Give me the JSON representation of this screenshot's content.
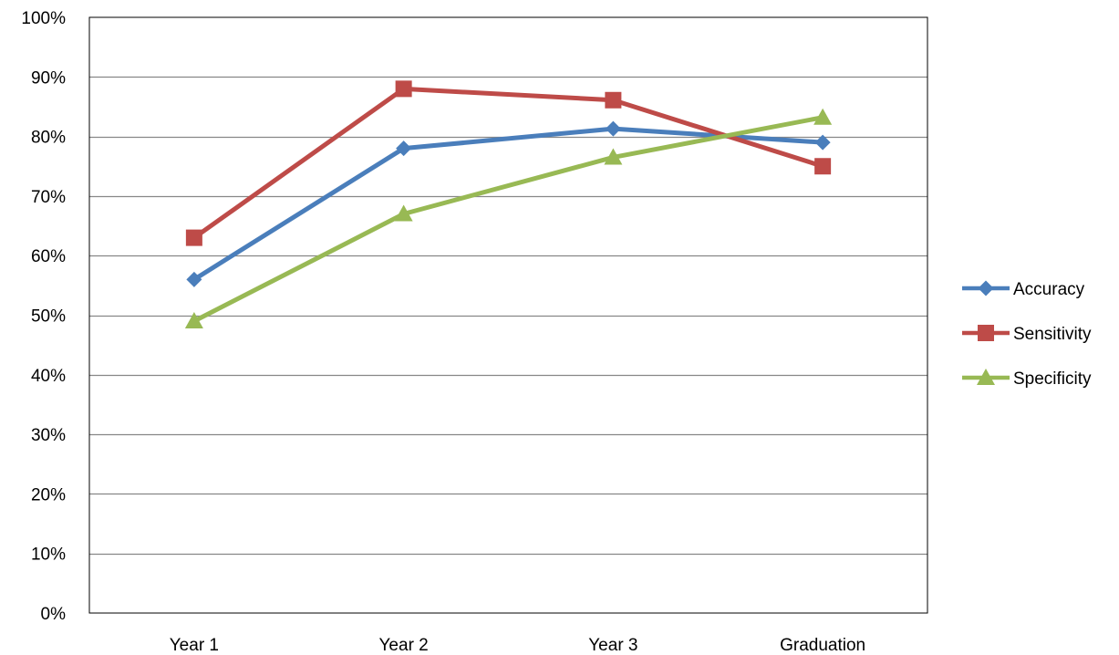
{
  "chart_data": {
    "type": "line",
    "title": "",
    "xlabel": "",
    "ylabel": "",
    "categories": [
      "Year 1",
      "Year 2",
      "Year 3",
      "Graduation"
    ],
    "ylim": [
      0,
      100
    ],
    "y_ticks": [
      0,
      10,
      20,
      30,
      40,
      50,
      60,
      70,
      80,
      90,
      100
    ],
    "y_tick_labels": [
      "0%",
      "10%",
      "20%",
      "30%",
      "40%",
      "50%",
      "60%",
      "70%",
      "80%",
      "90%",
      "100%"
    ],
    "y_unit": "percent",
    "grid": "horizontal",
    "legend_position": "right",
    "series": [
      {
        "name": "Accuracy",
        "values": [
          56,
          78,
          81.3,
          79
        ],
        "color": "#4a7ebb",
        "marker": "diamond"
      },
      {
        "name": "Sensitivity",
        "values": [
          63,
          88,
          86.1,
          75
        ],
        "color": "#be4b48",
        "marker": "square"
      },
      {
        "name": "Specificity",
        "values": [
          49,
          67,
          76.5,
          83.2
        ],
        "color": "#98b954",
        "marker": "triangle"
      }
    ]
  }
}
